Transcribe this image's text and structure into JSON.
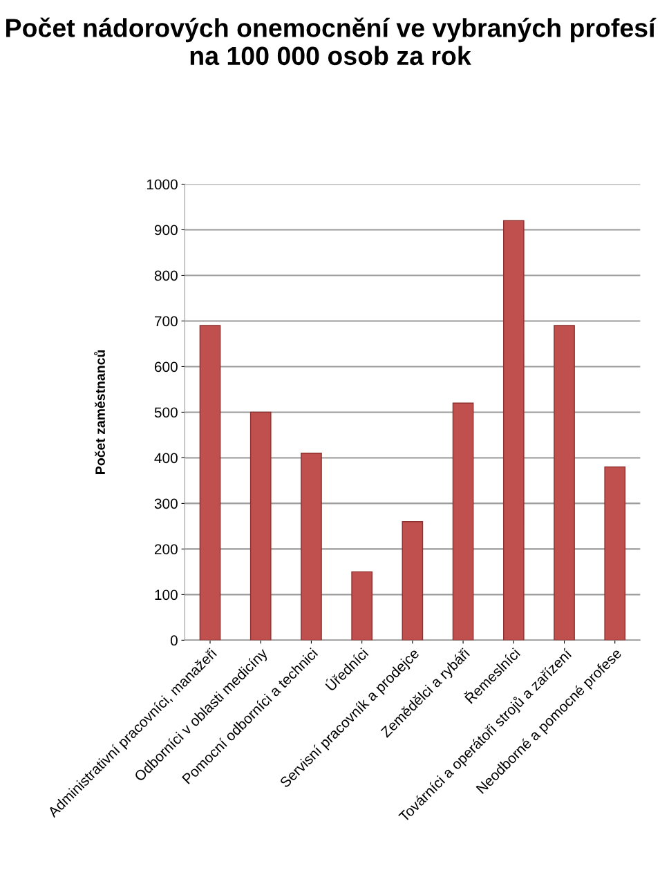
{
  "chart_data": {
    "type": "bar",
    "title": "Počet nádorových onemocnění ve vybraných profesí na 100 000 osob za rok",
    "ylabel": "Počet zaměstnanců",
    "categories": [
      "Administrativní pracovníci, manažeři",
      "Odborníci v oblasti medicíny",
      "Pomocní odborníci a technici",
      "Úředníci",
      "Servisní pracovník a prodejce",
      "Zemědělci a rybáři",
      "Řemeslníci",
      "Továrníci a operátoři strojů a zařízení",
      "Neodborné a pomocné profese"
    ],
    "values": [
      690,
      500,
      410,
      150,
      260,
      520,
      920,
      690,
      380
    ],
    "color": "#c0504d",
    "ylim": [
      0,
      1000
    ],
    "yticks": [
      0,
      100,
      200,
      300,
      400,
      500,
      600,
      700,
      800,
      900,
      1000
    ],
    "grid": "y",
    "legend": false
  }
}
